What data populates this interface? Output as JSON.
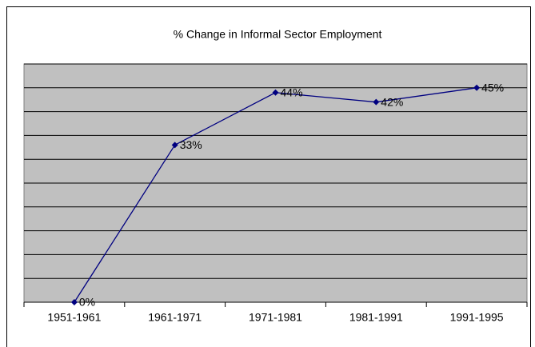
{
  "chart_data": {
    "type": "line",
    "title": "% Change in Informal Sector Employment",
    "categories": [
      "1951-1961",
      "1961-1971",
      "1971-1981",
      "1981-1991",
      "1991-1995"
    ],
    "series": [
      {
        "name": "% Change",
        "color": "#000080",
        "values": [
          0,
          33,
          44,
          42,
          45
        ],
        "value_labels": [
          "0%",
          "33%",
          "44%",
          "42%",
          "45%"
        ]
      }
    ],
    "ylim": [
      0,
      50
    ],
    "yticks": [
      0,
      5,
      10,
      15,
      20,
      25,
      30,
      35,
      40,
      45,
      50
    ],
    "grid": true,
    "plot_background": "#c0c0c0"
  }
}
